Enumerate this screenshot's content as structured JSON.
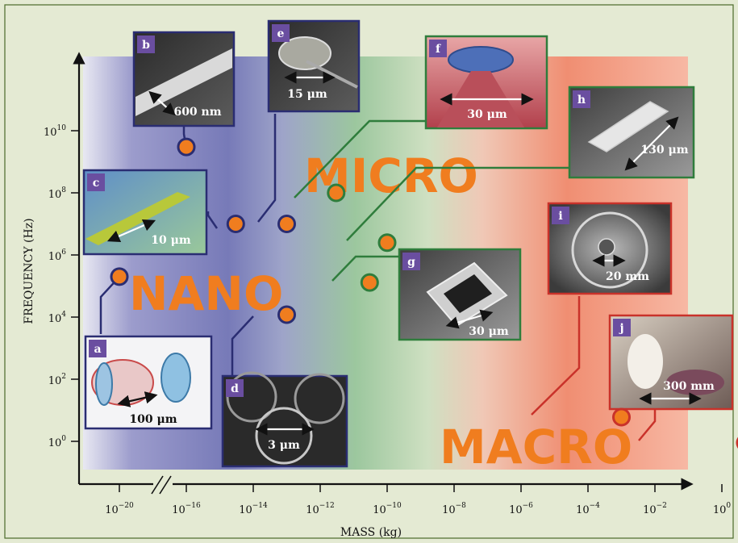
{
  "chart_data": {
    "type": "scatter",
    "title": "",
    "xlabel": "MASS (kg)",
    "ylabel": "FREQUENCY (Hz)",
    "x_scale": "log",
    "y_scale": "log",
    "x_axis_break": true,
    "x_tick_exponents": [
      -20,
      -16,
      -14,
      -12,
      -10,
      -8,
      -6,
      -4,
      -2,
      0
    ],
    "y_tick_exponents": [
      0,
      2,
      4,
      6,
      8,
      10
    ],
    "regimes": [
      {
        "label": "NANO",
        "color": "#7a7ab8"
      },
      {
        "label": "MICRO",
        "color": "#78b478"
      },
      {
        "label": "MACRO",
        "color": "#ee7a5c"
      }
    ],
    "points": [
      {
        "id": "a",
        "regime": "nano",
        "mass_kg": 1e-20,
        "freq_hz": 200000.0,
        "scale_label": "100 μm"
      },
      {
        "id": "b",
        "regime": "nano",
        "mass_kg": 1e-16,
        "freq_hz": 3000000000.0,
        "scale_label": "600 nm"
      },
      {
        "id": "c",
        "regime": "nano",
        "mass_kg": 3e-15,
        "freq_hz": 10000000.0,
        "scale_label": "10 μm"
      },
      {
        "id": "d",
        "regime": "nano",
        "mass_kg": 1e-13,
        "freq_hz": 12000.0,
        "scale_label": "3 μm"
      },
      {
        "id": "e",
        "regime": "nano",
        "mass_kg": 1e-13,
        "freq_hz": 10000000.0,
        "scale_label": "15 μm"
      },
      {
        "id": "f",
        "regime": "micro",
        "mass_kg": 3e-12,
        "freq_hz": 100000000.0,
        "scale_label": "30 μm"
      },
      {
        "id": "g",
        "regime": "micro",
        "mass_kg": 3e-11,
        "freq_hz": 130000.0,
        "scale_label": "30 μm"
      },
      {
        "id": "h",
        "regime": "micro",
        "mass_kg": 1e-10,
        "freq_hz": 2500000.0,
        "scale_label": "130 μm"
      },
      {
        "id": "i",
        "regime": "macro",
        "mass_kg": 0.001,
        "freq_hz": 6,
        "scale_label": "20 mm"
      },
      {
        "id": "j",
        "regime": "macro",
        "mass_kg": 5,
        "freq_hz": 0.9,
        "scale_label": "300 mm"
      }
    ]
  },
  "colors": {
    "background": "#e4ead3",
    "nano": "#2a2d72",
    "micro": "#2f7d3c",
    "macro": "#c9322a",
    "marker_fill": "#f07d1f",
    "regime_text": "#f07d1f"
  }
}
